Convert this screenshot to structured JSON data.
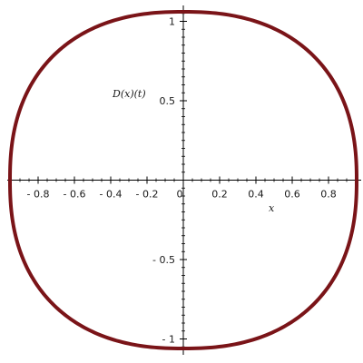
{
  "chart_data": {
    "type": "line",
    "title": "",
    "xlabel": "x",
    "ylabel": "D(x)(t)",
    "xlim": [
      -0.97,
      0.98
    ],
    "ylim": [
      -1.1,
      1.1
    ],
    "x_ticks": [
      {
        "value": -0.8,
        "label": "- 0.8"
      },
      {
        "value": -0.6,
        "label": "- 0.6"
      },
      {
        "value": -0.4,
        "label": "- 0.4"
      },
      {
        "value": -0.2,
        "label": "- 0.2"
      },
      {
        "value": 0,
        "label": "0"
      },
      {
        "value": 0.2,
        "label": "0.2"
      },
      {
        "value": 0.4,
        "label": "0.4"
      },
      {
        "value": 0.6,
        "label": "0.6"
      },
      {
        "value": 0.8,
        "label": "0.8"
      }
    ],
    "y_ticks": [
      {
        "value": 1,
        "label": "1"
      },
      {
        "value": 0.5,
        "label": "0.5"
      },
      {
        "value": -0.5,
        "label": "- 0.5"
      },
      {
        "value": -1,
        "label": "- 1"
      }
    ],
    "series": [
      {
        "name": "closed curve",
        "color": "#7a1418",
        "x_radius": 0.955,
        "y_radius": 1.06,
        "shape_exponent": 2.35
      }
    ]
  }
}
